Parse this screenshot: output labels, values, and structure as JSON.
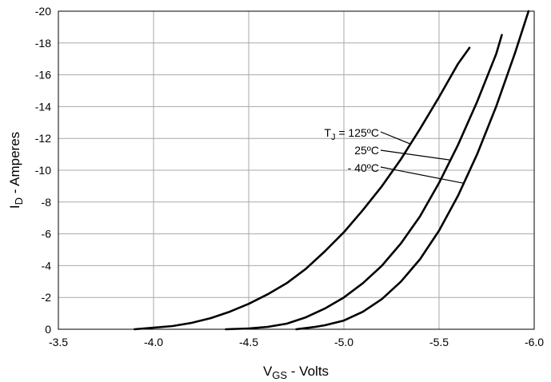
{
  "chart_data": {
    "type": "line",
    "xlabel": {
      "main": "V",
      "sub": "GS",
      "rest": " - Volts"
    },
    "ylabel": {
      "main": "I",
      "sub": "D",
      "rest": " - Amperes"
    },
    "xlim": [
      -3.5,
      -6.0
    ],
    "ylim": [
      0,
      -20
    ],
    "x_ticks": [
      -3.5,
      -4.0,
      -4.5,
      -5.0,
      -5.5,
      -6.0
    ],
    "x_tick_labels": [
      "-3.5",
      "-4.0",
      "-4.5",
      "-5.0",
      "-5.5",
      "-6.0"
    ],
    "y_ticks": [
      0,
      -2,
      -4,
      -6,
      -8,
      -10,
      -12,
      -14,
      -16,
      -18,
      -20
    ],
    "y_tick_labels": [
      "0",
      "-2",
      "-4",
      "-6",
      "-8",
      "-10",
      "-12",
      "-14",
      "-16",
      "-18",
      "-20"
    ],
    "grid": true,
    "series": [
      {
        "name": "T_J = 125ºC",
        "label_main": "T",
        "label_sub": "J",
        "label_rest": " = 125ºC",
        "x": [
          -3.9,
          -4.0,
          -4.1,
          -4.2,
          -4.3,
          -4.4,
          -4.5,
          -4.6,
          -4.7,
          -4.8,
          -4.9,
          -5.0,
          -5.1,
          -5.2,
          -5.3,
          -5.4,
          -5.5,
          -5.6,
          -5.66
        ],
        "y": [
          0,
          -0.1,
          -0.2,
          -0.4,
          -0.7,
          -1.1,
          -1.6,
          -2.2,
          -2.9,
          -3.8,
          -4.9,
          -6.1,
          -7.5,
          -9.0,
          -10.7,
          -12.6,
          -14.6,
          -16.7,
          -17.7
        ]
      },
      {
        "name": "25ºC",
        "label_main": "25ºC",
        "label_sub": "",
        "label_rest": "",
        "x": [
          -4.38,
          -4.5,
          -4.6,
          -4.7,
          -4.8,
          -4.9,
          -5.0,
          -5.1,
          -5.2,
          -5.3,
          -5.4,
          -5.5,
          -5.6,
          -5.7,
          -5.8,
          -5.83
        ],
        "y": [
          0,
          -0.05,
          -0.15,
          -0.35,
          -0.75,
          -1.3,
          -2.0,
          -2.9,
          -4.0,
          -5.4,
          -7.1,
          -9.2,
          -11.6,
          -14.3,
          -17.3,
          -18.5
        ]
      },
      {
        "name": "- 40ºC",
        "label_main": "- 40ºC",
        "label_sub": "",
        "label_rest": "",
        "x": [
          -4.75,
          -4.85,
          -4.9,
          -5.0,
          -5.1,
          -5.2,
          -5.3,
          -5.4,
          -5.5,
          -5.6,
          -5.7,
          -5.8,
          -5.9,
          -5.97
        ],
        "y": [
          0,
          -0.15,
          -0.25,
          -0.55,
          -1.1,
          -1.9,
          -3.0,
          -4.4,
          -6.2,
          -8.4,
          -11.0,
          -14.0,
          -17.4,
          -20.0
        ]
      }
    ]
  }
}
